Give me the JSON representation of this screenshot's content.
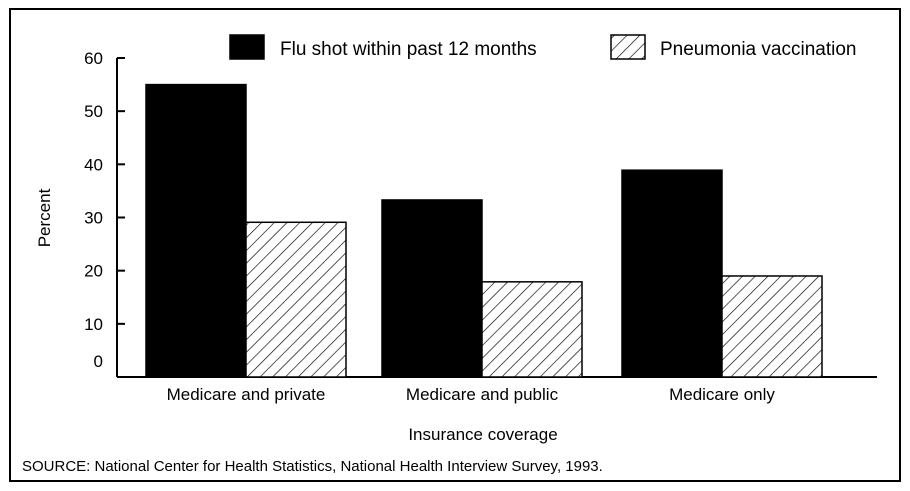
{
  "chart_data": {
    "type": "bar",
    "categories": [
      "Medicare and private",
      "Medicare and public",
      "Medicare only"
    ],
    "series": [
      {
        "name": "Flu shot within past 12 months",
        "values": [
          55,
          33.3,
          38.9
        ],
        "fill": "solid",
        "color": "#000000"
      },
      {
        "name": "Pneumonia vaccination",
        "values": [
          29.1,
          17.9,
          19.0
        ],
        "fill": "hatched",
        "color": "#000000"
      }
    ],
    "yticks": [
      0,
      10,
      20,
      30,
      40,
      50,
      60
    ],
    "ylim": [
      0,
      60
    ],
    "xlabel": "Insurance coverage",
    "ylabel": "Percent",
    "legend_position": "top-right",
    "grid": false
  },
  "source": "SOURCE: National Center for Health Statistics, National Health Interview Survey, 1993."
}
